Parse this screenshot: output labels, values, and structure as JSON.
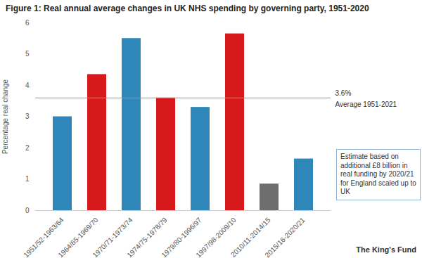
{
  "chart_data": {
    "type": "bar",
    "title": "Figure 1: Real annual average changes in UK NHS spending by governing party, 1951-2020",
    "y_label": "Percentage real change",
    "categories": [
      "1951/52-1963/64",
      "1964/65-1969/70",
      "1970/71-1973/74",
      "1974/75-1978/79",
      "1979/80-1996/97",
      "1997/98-2009/10",
      "2010/11-2014/15",
      "2015/16-2020/21"
    ],
    "values": [
      3.0,
      4.35,
      5.5,
      3.6,
      3.3,
      5.65,
      0.85,
      1.65
    ],
    "colors": [
      "#2e86b9",
      "#d7191c",
      "#2e86b9",
      "#d7191c",
      "#2e86b9",
      "#d7191c",
      "#6e6e6e",
      "#2e86b9"
    ],
    "ylim": [
      0,
      6
    ],
    "yticks": [
      0,
      1,
      2,
      3,
      4,
      5,
      6
    ],
    "grid": false,
    "reference_line": {
      "value": 3.6,
      "label": "3.6%",
      "text": "Average 1951-2021"
    },
    "annotation": "Estimate based on additional £8 billion in real funding by 2020/21 for England scaled up to UK",
    "source": "The King's Fund"
  }
}
